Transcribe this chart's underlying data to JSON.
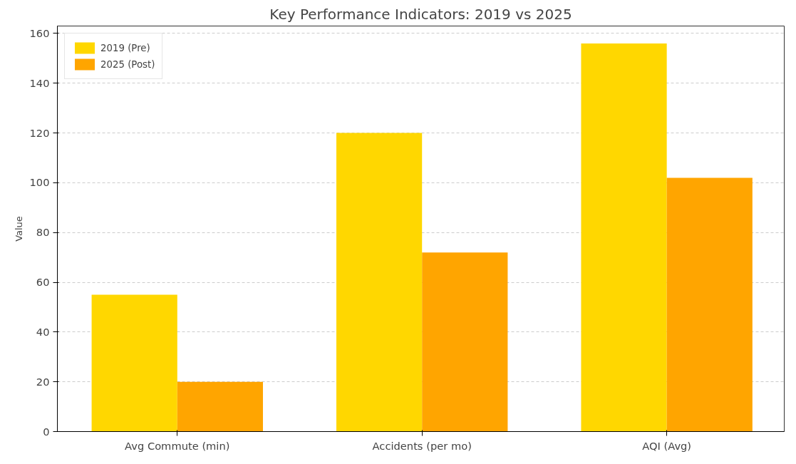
{
  "chart_data": {
    "type": "bar",
    "title": "Key Performance Indicators: 2019 vs 2025",
    "ylabel": "Value",
    "categories": [
      "Avg Commute (min)",
      "Accidents (per mo)",
      "AQI (Avg)"
    ],
    "series": [
      {
        "name": "2019 (Pre)",
        "color": "#ffd700",
        "values": [
          55,
          120,
          156
        ]
      },
      {
        "name": "2025 (Post)",
        "color": "#ffa500",
        "values": [
          20,
          72,
          102
        ]
      }
    ],
    "ylim": [
      0,
      163
    ],
    "yticks": [
      0,
      20,
      40,
      60,
      80,
      100,
      120,
      140,
      160
    ],
    "grid": "y",
    "legend": "top left"
  }
}
